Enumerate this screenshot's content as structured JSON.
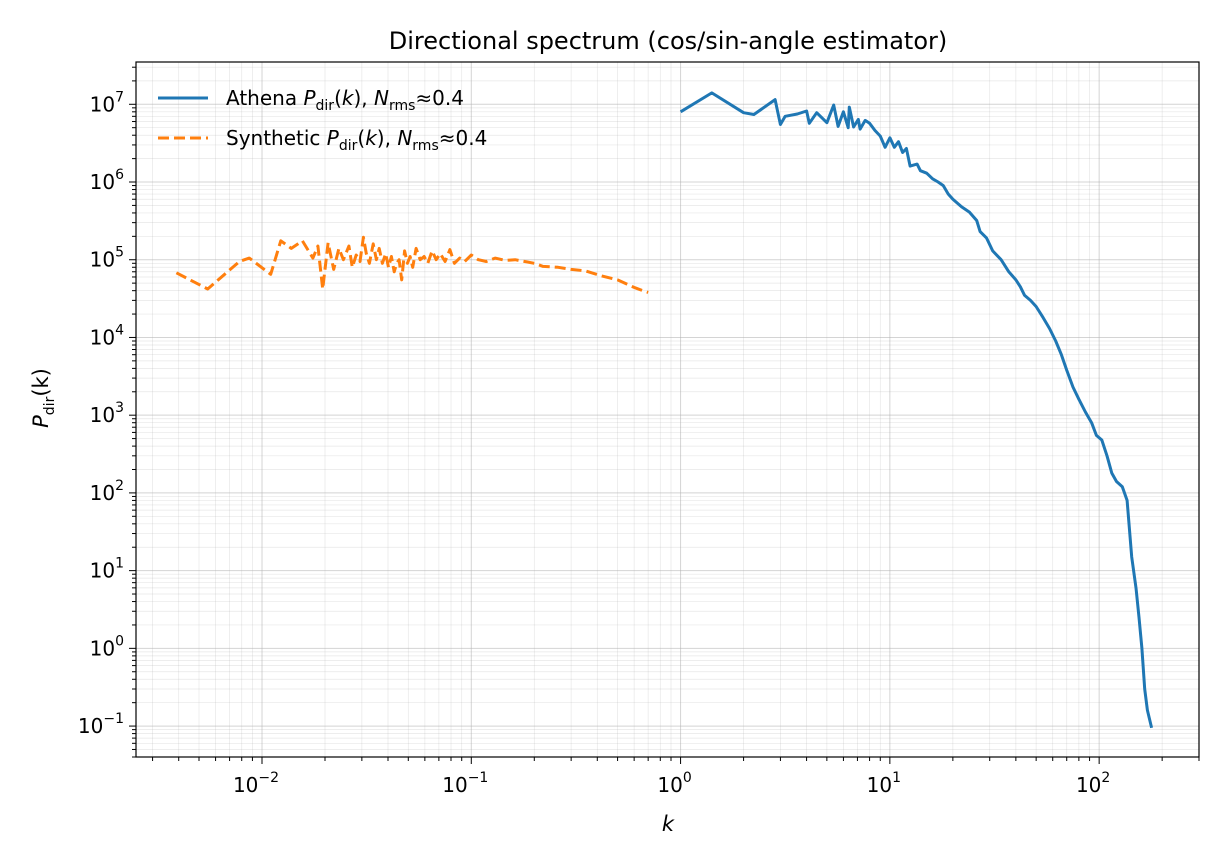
{
  "chart_data": {
    "type": "line",
    "title": "Directional spectrum (cos/sin-angle estimator)",
    "xlabel": "k",
    "ylabel": "P_dir(k)",
    "x_scale": "log",
    "y_scale": "log",
    "xlim": [
      0.0025,
      300
    ],
    "ylim": [
      0.04,
      35000000
    ],
    "x_ticks": [
      {
        "value": 0.01,
        "base": "10",
        "exp": "−2"
      },
      {
        "value": 0.1,
        "base": "10",
        "exp": "−1"
      },
      {
        "value": 1,
        "base": "10",
        "exp": "0"
      },
      {
        "value": 10,
        "base": "10",
        "exp": "1"
      },
      {
        "value": 100,
        "base": "10",
        "exp": "2"
      }
    ],
    "y_ticks": [
      {
        "value": 0.1,
        "base": "10",
        "exp": "−1"
      },
      {
        "value": 1,
        "base": "10",
        "exp": "0"
      },
      {
        "value": 10,
        "base": "10",
        "exp": "1"
      },
      {
        "value": 100,
        "base": "10",
        "exp": "2"
      },
      {
        "value": 1000,
        "base": "10",
        "exp": "3"
      },
      {
        "value": 10000,
        "base": "10",
        "exp": "4"
      },
      {
        "value": 100000,
        "base": "10",
        "exp": "5"
      },
      {
        "value": 1000000,
        "base": "10",
        "exp": "6"
      },
      {
        "value": 10000000,
        "base": "10",
        "exp": "7"
      }
    ],
    "grid": true,
    "legend_position": "top-left",
    "series": [
      {
        "name": "Athena P_dir(k), N_rms≈0.4",
        "color": "#1f77b4",
        "style": "solid",
        "points": [
          [
            1.0,
            8000000
          ],
          [
            1.41,
            14000000
          ],
          [
            2.0,
            7800000
          ],
          [
            2.24,
            7400000
          ],
          [
            2.83,
            11500000
          ],
          [
            3.0,
            5500000
          ],
          [
            3.16,
            7000000
          ],
          [
            3.61,
            7500000
          ],
          [
            4.0,
            8200000
          ],
          [
            4.12,
            5700000
          ],
          [
            4.47,
            7800000
          ],
          [
            5.0,
            5800000
          ],
          [
            5.39,
            9800000
          ],
          [
            5.66,
            5200000
          ],
          [
            6.0,
            8000000
          ],
          [
            6.32,
            5000000
          ],
          [
            6.4,
            9200000
          ],
          [
            6.71,
            5100000
          ],
          [
            7.07,
            6400000
          ],
          [
            7.21,
            4800000
          ],
          [
            7.62,
            6200000
          ],
          [
            8.0,
            5700000
          ],
          [
            8.49,
            4600000
          ],
          [
            9.0,
            3900000
          ],
          [
            9.49,
            2800000
          ],
          [
            10.0,
            3700000
          ],
          [
            10.5,
            2800000
          ],
          [
            11.0,
            3300000
          ],
          [
            11.5,
            2400000
          ],
          [
            12.0,
            2700000
          ],
          [
            12.5,
            1600000
          ],
          [
            13.5,
            1700000
          ],
          [
            14.0,
            1400000
          ],
          [
            15.0,
            1300000
          ],
          [
            16.0,
            1100000
          ],
          [
            17.0,
            1000000
          ],
          [
            18.0,
            900000
          ],
          [
            19.0,
            700000
          ],
          [
            20.0,
            600000
          ],
          [
            22.0,
            480000
          ],
          [
            24.0,
            410000
          ],
          [
            26.0,
            320000
          ],
          [
            27.0,
            230000
          ],
          [
            29.0,
            190000
          ],
          [
            31.0,
            130000
          ],
          [
            34.0,
            100000
          ],
          [
            37.0,
            70000
          ],
          [
            40.0,
            55000
          ],
          [
            42.0,
            45000
          ],
          [
            44.0,
            35000
          ],
          [
            47.0,
            30000
          ],
          [
            50.0,
            25000
          ],
          [
            54.0,
            18000
          ],
          [
            58.0,
            13000
          ],
          [
            62.0,
            9000
          ],
          [
            66.0,
            6000
          ],
          [
            70.0,
            3800
          ],
          [
            75.0,
            2300
          ],
          [
            80.0,
            1600
          ],
          [
            86.0,
            1100
          ],
          [
            92.0,
            800
          ],
          [
            97.0,
            550
          ],
          [
            103.0,
            480
          ],
          [
            109.0,
            300
          ],
          [
            115.0,
            180
          ],
          [
            121.0,
            140
          ],
          [
            129.0,
            120
          ],
          [
            136.0,
            80
          ],
          [
            143.0,
            15
          ],
          [
            150.0,
            6
          ],
          [
            155.0,
            2.5
          ],
          [
            160.0,
            1
          ],
          [
            165.0,
            0.3
          ],
          [
            170.0,
            0.16
          ],
          [
            178.0,
            0.095
          ]
        ]
      },
      {
        "name": "Synthetic P_dir(k), N_rms≈0.4",
        "color": "#ff7f0e",
        "style": "dashed",
        "points": [
          [
            0.0039,
            68000
          ],
          [
            0.0055,
            42000
          ],
          [
            0.0078,
            95000
          ],
          [
            0.0087,
            105000
          ],
          [
            0.011,
            65000
          ],
          [
            0.0123,
            175000
          ],
          [
            0.0138,
            140000
          ],
          [
            0.0156,
            175000
          ],
          [
            0.0175,
            105000
          ],
          [
            0.0185,
            150000
          ],
          [
            0.0195,
            42000
          ],
          [
            0.0207,
            165000
          ],
          [
            0.022,
            75000
          ],
          [
            0.0233,
            140000
          ],
          [
            0.0245,
            100000
          ],
          [
            0.026,
            150000
          ],
          [
            0.027,
            80000
          ],
          [
            0.0282,
            115000
          ],
          [
            0.0294,
            95000
          ],
          [
            0.0305,
            195000
          ],
          [
            0.0315,
            120000
          ],
          [
            0.0326,
            90000
          ],
          [
            0.034,
            160000
          ],
          [
            0.0352,
            100000
          ],
          [
            0.0363,
            140000
          ],
          [
            0.0376,
            90000
          ],
          [
            0.039,
            120000
          ],
          [
            0.0402,
            80000
          ],
          [
            0.0415,
            110000
          ],
          [
            0.0428,
            70000
          ],
          [
            0.044,
            90000
          ],
          [
            0.0452,
            100000
          ],
          [
            0.0465,
            55000
          ],
          [
            0.048,
            130000
          ],
          [
            0.0495,
            90000
          ],
          [
            0.051,
            110000
          ],
          [
            0.0525,
            80000
          ],
          [
            0.0545,
            140000
          ],
          [
            0.057,
            100000
          ],
          [
            0.0595,
            110000
          ],
          [
            0.062,
            90000
          ],
          [
            0.065,
            130000
          ],
          [
            0.068,
            100000
          ],
          [
            0.071,
            120000
          ],
          [
            0.075,
            95000
          ],
          [
            0.079,
            135000
          ],
          [
            0.083,
            90000
          ],
          [
            0.088,
            105000
          ],
          [
            0.093,
            95000
          ],
          [
            0.1,
            115000
          ],
          [
            0.108,
            100000
          ],
          [
            0.118,
            95000
          ],
          [
            0.13,
            105000
          ],
          [
            0.145,
            98000
          ],
          [
            0.162,
            100000
          ],
          [
            0.18,
            95000
          ],
          [
            0.2,
            90000
          ],
          [
            0.22,
            82000
          ],
          [
            0.26,
            80000
          ],
          [
            0.3,
            75000
          ],
          [
            0.35,
            72000
          ],
          [
            0.42,
            62000
          ],
          [
            0.5,
            55000
          ],
          [
            0.6,
            44000
          ],
          [
            0.66,
            40000
          ],
          [
            0.7,
            38000
          ]
        ]
      }
    ],
    "legend": [
      {
        "base": "Athena ",
        "P": "P",
        "P_sub": "dir",
        "mid": "(",
        "k": "k",
        "mid2": "), ",
        "N": "N",
        "N_sub": "rms",
        "tail": "≈0.4"
      },
      {
        "base": "Synthetic ",
        "P": "P",
        "P_sub": "dir",
        "mid": "(",
        "k": "k",
        "mid2": "), ",
        "N": "N",
        "N_sub": "rms",
        "tail": "≈0.4"
      }
    ],
    "ylabel_parts": {
      "P": "P",
      "sub": "dir",
      "rest": "(k)"
    }
  }
}
